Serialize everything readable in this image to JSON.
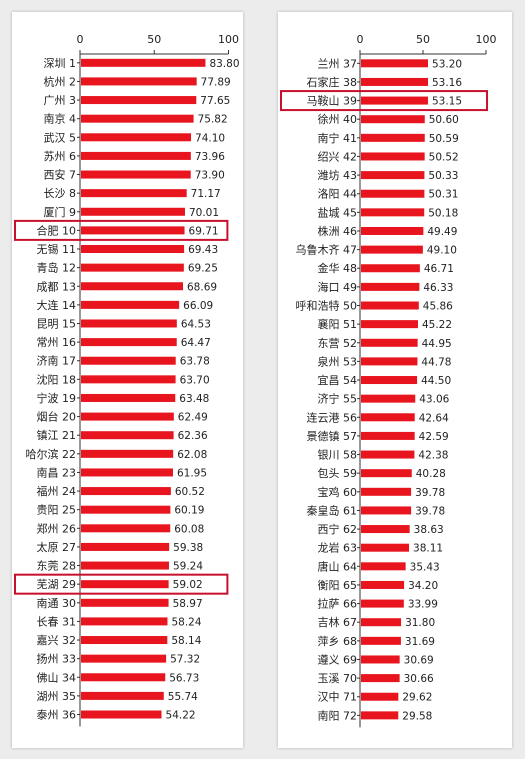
{
  "chart_data": [
    {
      "type": "bar",
      "orientation": "horizontal",
      "xlim": [
        0,
        100
      ],
      "xticks": [
        "0",
        "50",
        "100"
      ],
      "bar_color": "#e8141e",
      "highlight_color": "#c8102e",
      "highlighted_categories": [
        "合肥 10",
        "芜湖 29"
      ],
      "categories": [
        "深圳 1",
        "杭州 2",
        "广州 3",
        "南京 4",
        "武汉 5",
        "苏州 6",
        "西安 7",
        "长沙 8",
        "厦门 9",
        "合肥 10",
        "无锡 11",
        "青岛 12",
        "成都 13",
        "大连 14",
        "昆明 15",
        "常州 16",
        "济南 17",
        "沈阳 18",
        "宁波 19",
        "烟台 20",
        "镇江 21",
        "哈尔滨 22",
        "南昌 23",
        "福州 24",
        "贵阳 25",
        "郑州 26",
        "太原 27",
        "东莞 28",
        "芜湖 29",
        "南通 30",
        "长春 31",
        "嘉兴 32",
        "扬州 33",
        "佛山 34",
        "湖州 35",
        "泰州 36"
      ],
      "values": [
        83.8,
        77.89,
        77.65,
        75.82,
        74.1,
        73.96,
        73.9,
        71.17,
        70.01,
        69.71,
        69.43,
        69.25,
        68.69,
        66.09,
        64.53,
        64.47,
        63.78,
        63.7,
        63.48,
        62.49,
        62.36,
        62.08,
        61.95,
        60.52,
        60.19,
        60.08,
        59.38,
        59.24,
        59.02,
        58.97,
        58.24,
        58.14,
        57.32,
        56.73,
        55.74,
        54.22
      ],
      "value_labels": [
        "83.80",
        "77.89",
        "77.65",
        "75.82",
        "74.10",
        "73.96",
        "73.90",
        "71.17",
        "70.01",
        "69.71",
        "69.43",
        "69.25",
        "68.69",
        "66.09",
        "64.53",
        "64.47",
        "63.78",
        "63.70",
        "63.48",
        "62.49",
        "62.36",
        "62.08",
        "61.95",
        "60.52",
        "60.19",
        "60.08",
        "59.38",
        "59.24",
        "59.02",
        "58.97",
        "58.24",
        "58.14",
        "57.32",
        "56.73",
        "55.74",
        "54.22"
      ]
    },
    {
      "type": "bar",
      "orientation": "horizontal",
      "xlim": [
        0,
        100
      ],
      "xticks": [
        "0",
        "50",
        "100"
      ],
      "bar_color": "#e8141e",
      "highlight_color": "#c8102e",
      "highlighted_categories": [
        "马鞍山 39"
      ],
      "categories": [
        "兰州 37",
        "石家庄 38",
        "马鞍山 39",
        "徐州 40",
        "南宁 41",
        "绍兴 42",
        "潍坊 43",
        "洛阳 44",
        "盐城 45",
        "株洲 46",
        "乌鲁木齐 47",
        "金华 48",
        "海口 49",
        "呼和浩特 50",
        "襄阳 51",
        "东营 52",
        "泉州 53",
        "宜昌 54",
        "济宁 55",
        "连云港 56",
        "景德镇 57",
        "银川 58",
        "包头 59",
        "宝鸡 60",
        "秦皇岛 61",
        "西宁 62",
        "龙岩 63",
        "唐山 64",
        "衡阳 65",
        "拉萨 66",
        "吉林 67",
        "萍乡 68",
        "遵义 69",
        "玉溪 70",
        "汉中 71",
        "南阳 72"
      ],
      "values": [
        53.2,
        53.16,
        53.15,
        50.6,
        50.59,
        50.52,
        50.33,
        50.31,
        50.18,
        49.49,
        49.1,
        46.71,
        46.33,
        45.86,
        45.22,
        44.95,
        44.78,
        44.5,
        43.06,
        42.64,
        42.59,
        42.38,
        40.28,
        39.78,
        39.78,
        38.63,
        38.11,
        35.43,
        34.2,
        33.99,
        31.8,
        31.69,
        30.69,
        30.66,
        29.62,
        29.58
      ],
      "value_labels": [
        "53.20",
        "53.16",
        "53.15",
        "50.60",
        "50.59",
        "50.52",
        "50.33",
        "50.31",
        "50.18",
        "49.49",
        "49.10",
        "46.71",
        "46.33",
        "45.86",
        "45.22",
        "44.95",
        "44.78",
        "44.50",
        "43.06",
        "42.64",
        "42.59",
        "42.38",
        "40.28",
        "39.78",
        "39.78",
        "38.63",
        "38.11",
        "35.43",
        "34.20",
        "33.99",
        "31.80",
        "31.69",
        "30.69",
        "30.66",
        "29.62",
        "29.58"
      ]
    }
  ]
}
